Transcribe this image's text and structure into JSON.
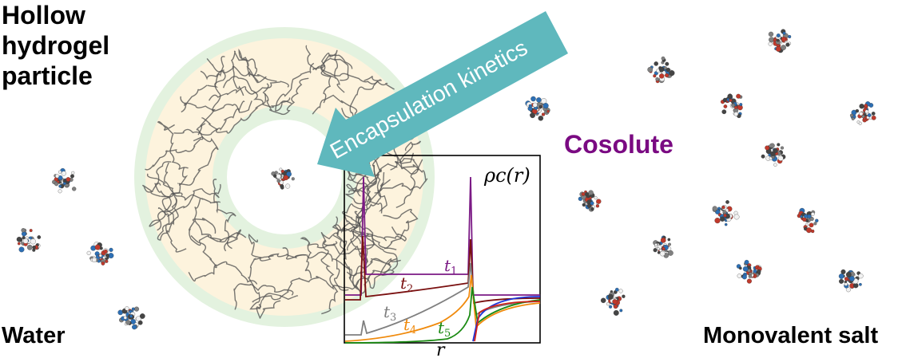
{
  "title_lines": [
    "Hollow",
    "hydrogel",
    "particle"
  ],
  "labels": {
    "water": "Water",
    "monovalent_salt": "Monovalent salt",
    "cosolute": "Cosolute",
    "arrow": "Encapsulation kinetics"
  },
  "inset": {
    "y_label": "ρc(r)",
    "x_label": "r",
    "curves": [
      {
        "name": "t1",
        "color": "#7b1a85"
      },
      {
        "name": "t2",
        "color": "#7a1010"
      },
      {
        "name": "t3",
        "color": "#7f7f7f"
      },
      {
        "name": "t4",
        "color": "#f08a0c"
      },
      {
        "name": "t5",
        "color": "#1a8a12"
      }
    ]
  },
  "colors": {
    "cosolute_text": "#7a0a82",
    "arrow_fill": "#5fb8bd",
    "shell_outer": "#e3f2df",
    "shell_inner": "#fdf3dd"
  }
}
